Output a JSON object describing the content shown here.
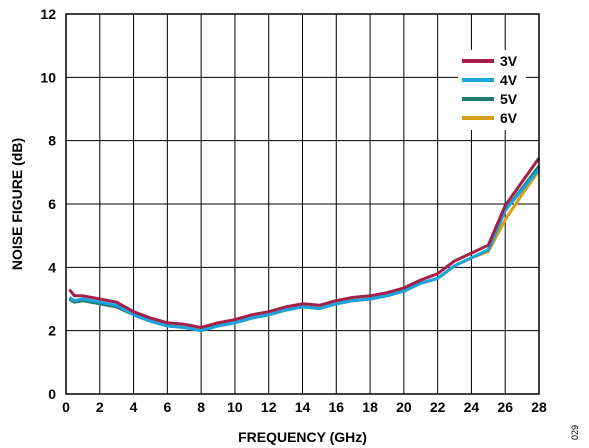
{
  "chart_data": {
    "type": "line",
    "xlabel": "FREQUENCY (GHz)",
    "ylabel": "NOISE FIGURE (dB)",
    "xlim": [
      0,
      28
    ],
    "ylim": [
      0,
      12
    ],
    "xticks": [
      0,
      2,
      4,
      6,
      8,
      10,
      12,
      14,
      16,
      18,
      20,
      22,
      24,
      26,
      28
    ],
    "yticks": [
      0,
      2,
      4,
      6,
      8,
      10,
      12
    ],
    "grid": true,
    "legend_position": "top-right",
    "x": [
      0.2,
      0.5,
      1,
      2,
      3,
      4,
      5,
      6,
      7,
      8,
      9,
      10,
      11,
      12,
      13,
      14,
      15,
      16,
      17,
      18,
      19,
      20,
      21,
      22,
      23,
      24,
      25,
      26,
      27,
      28
    ],
    "series": [
      {
        "name": "3V",
        "color": "#a3204a",
        "values": [
          3.3,
          3.1,
          3.1,
          3.0,
          2.9,
          2.6,
          2.4,
          2.25,
          2.2,
          2.1,
          2.25,
          2.35,
          2.5,
          2.6,
          2.75,
          2.85,
          2.8,
          2.95,
          3.05,
          3.1,
          3.2,
          3.35,
          3.6,
          3.8,
          4.2,
          4.45,
          4.7,
          5.95,
          6.7,
          7.45
        ]
      },
      {
        "name": "4V",
        "color": "#1aa3dc",
        "values": [
          3.05,
          2.95,
          3.0,
          2.9,
          2.8,
          2.5,
          2.3,
          2.15,
          2.1,
          2.0,
          2.15,
          2.25,
          2.4,
          2.5,
          2.65,
          2.75,
          2.7,
          2.85,
          2.95,
          3.0,
          3.1,
          3.25,
          3.5,
          3.65,
          4.05,
          4.3,
          4.55,
          5.8,
          6.45,
          7.1
        ]
      },
      {
        "name": "5V",
        "color": "#1e7a72",
        "values": [
          3.0,
          2.9,
          2.95,
          2.85,
          2.75,
          2.5,
          2.3,
          2.15,
          2.1,
          2.0,
          2.15,
          2.25,
          2.4,
          2.5,
          2.65,
          2.75,
          2.7,
          2.85,
          2.95,
          3.0,
          3.1,
          3.25,
          3.5,
          3.65,
          4.05,
          4.3,
          4.55,
          5.8,
          6.5,
          7.2
        ]
      },
      {
        "name": "6V",
        "color": "#d4a017",
        "values": [
          3.0,
          2.9,
          2.95,
          2.85,
          2.75,
          2.5,
          2.3,
          2.15,
          2.1,
          2.0,
          2.15,
          2.25,
          2.4,
          2.5,
          2.65,
          2.75,
          2.7,
          2.85,
          2.95,
          3.0,
          3.1,
          3.25,
          3.5,
          3.65,
          4.05,
          4.3,
          4.5,
          5.5,
          6.3,
          7.05
        ]
      }
    ]
  },
  "figure_id": "029"
}
